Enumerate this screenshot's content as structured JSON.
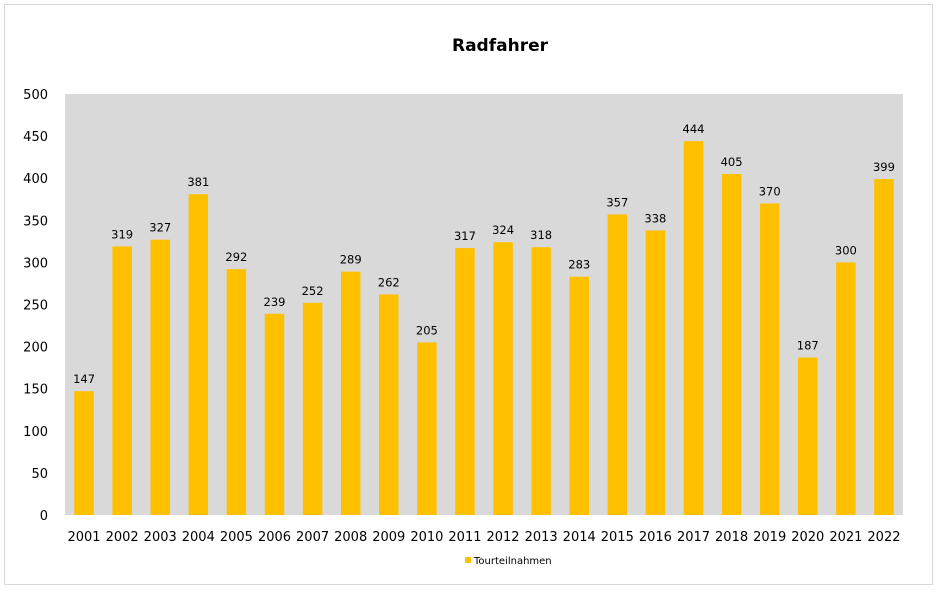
{
  "chart_data": {
    "type": "bar",
    "title": "Radfahrer",
    "categories": [
      "2001",
      "2002",
      "2003",
      "2004",
      "2005",
      "2006",
      "2007",
      "2008",
      "2009",
      "2010",
      "2011",
      "2012",
      "2013",
      "2014",
      "2015",
      "2016",
      "2017",
      "2018",
      "2019",
      "2020",
      "2021",
      "2022"
    ],
    "series": [
      {
        "name": "Tourteilnahmen",
        "color": "#ffc000",
        "values": [
          147,
          319,
          327,
          381,
          292,
          239,
          252,
          289,
          262,
          205,
          317,
          324,
          318,
          283,
          357,
          338,
          444,
          405,
          370,
          187,
          300,
          399
        ]
      }
    ],
    "ylim": [
      0,
      500
    ],
    "yticks": [
      0,
      50,
      100,
      150,
      200,
      250,
      300,
      350,
      400,
      450,
      500
    ],
    "grid": false,
    "plot_background": "#d9d9d9",
    "data_labels": true,
    "legend": "bottom-center"
  }
}
